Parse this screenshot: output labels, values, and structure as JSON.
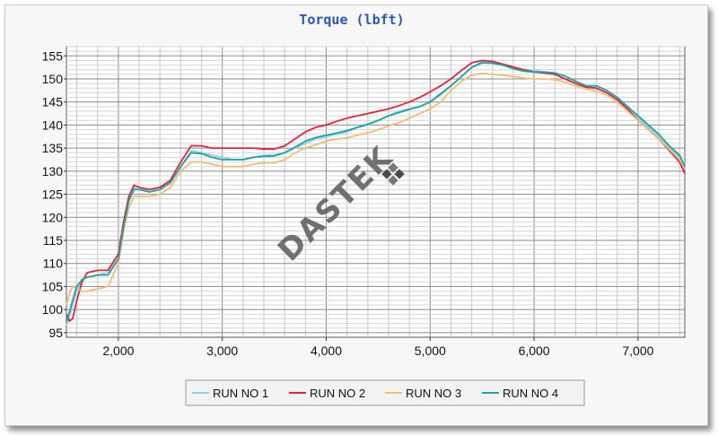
{
  "chart_data": {
    "type": "line",
    "title": "Torque (lbft)",
    "xlabel": "",
    "ylabel": "",
    "xlim": [
      1500,
      7450
    ],
    "ylim": [
      94,
      157
    ],
    "x_ticks": [
      2000,
      3000,
      4000,
      5000,
      6000,
      7000
    ],
    "x_tick_labels": [
      "2,000",
      "3,000",
      "4,000",
      "5,000",
      "6,000",
      "7,000"
    ],
    "y_ticks": [
      95,
      100,
      105,
      110,
      115,
      120,
      125,
      130,
      135,
      140,
      145,
      150,
      155
    ],
    "y_tick_labels": [
      "95",
      "100",
      "105",
      "110",
      "115",
      "120",
      "125",
      "130",
      "135",
      "140",
      "145",
      "150",
      "155"
    ],
    "grid": true,
    "legend_position": "bottom-center",
    "watermark": "DASTEK",
    "series": [
      {
        "name": "RUN NO 1",
        "color": "#8fd0ec",
        "x": [
          1500,
          1530,
          1560,
          1600,
          1650,
          1700,
          1800,
          1900,
          2000,
          2050,
          2100,
          2150,
          2200,
          2300,
          2400,
          2500,
          2600,
          2700,
          2800,
          2900,
          3000,
          3100,
          3200,
          3300,
          3400,
          3500,
          3600,
          3700,
          3800,
          3900,
          4000,
          4100,
          4200,
          4300,
          4400,
          4500,
          4600,
          4700,
          4800,
          4900,
          5000,
          5100,
          5200,
          5300,
          5400,
          5500,
          5600,
          5700,
          5800,
          5900,
          6000,
          6100,
          6200,
          6300,
          6400,
          6500,
          6600,
          6700,
          6800,
          6900,
          7000,
          7100,
          7200,
          7300,
          7400,
          7450
        ],
        "values": [
          96.5,
          98.5,
          101,
          104,
          106.5,
          107,
          107.5,
          108,
          112,
          119,
          124,
          126.5,
          126,
          126,
          126.5,
          127.5,
          131,
          134.5,
          134,
          133.5,
          133,
          132.5,
          132.5,
          133,
          133.5,
          133.5,
          134,
          135,
          136,
          137,
          137.5,
          138,
          138.5,
          139.5,
          140,
          141,
          142,
          143,
          143.5,
          144,
          145,
          146.5,
          148.5,
          150.5,
          152.5,
          153.8,
          153.5,
          153,
          152.5,
          152,
          151.8,
          151.5,
          151,
          150,
          149,
          148.3,
          148,
          147,
          145.5,
          143.5,
          141.5,
          139.5,
          137.5,
          135,
          133,
          131.5
        ]
      },
      {
        "name": "RUN NO 2",
        "color": "#e0243e",
        "x": [
          1500,
          1530,
          1560,
          1600,
          1650,
          1700,
          1800,
          1900,
          2000,
          2050,
          2100,
          2150,
          2200,
          2300,
          2400,
          2500,
          2600,
          2700,
          2800,
          2900,
          3000,
          3100,
          3200,
          3300,
          3400,
          3500,
          3600,
          3700,
          3800,
          3900,
          4000,
          4100,
          4200,
          4300,
          4400,
          4500,
          4600,
          4700,
          4800,
          4900,
          5000,
          5100,
          5200,
          5300,
          5400,
          5500,
          5600,
          5700,
          5800,
          5900,
          6000,
          6100,
          6200,
          6300,
          6400,
          6500,
          6600,
          6700,
          6800,
          6900,
          7000,
          7100,
          7200,
          7300,
          7400,
          7450
        ],
        "values": [
          99,
          97.5,
          98,
          102,
          106,
          108,
          108.5,
          108.5,
          112,
          119,
          124.5,
          127,
          126.5,
          126,
          126.5,
          128,
          132,
          135.5,
          135.5,
          135,
          135,
          135,
          135,
          135,
          134.8,
          134.8,
          135.5,
          137,
          138.5,
          139.5,
          140,
          140.8,
          141.5,
          142,
          142.5,
          143,
          143.5,
          144.2,
          145,
          146,
          147.2,
          148.5,
          150,
          151.8,
          153.5,
          154,
          153.8,
          153.2,
          152.6,
          152,
          151.5,
          151.3,
          151,
          150,
          149,
          148.2,
          148,
          147,
          145.5,
          143.5,
          141,
          139,
          137,
          134.5,
          132,
          129.5
        ]
      },
      {
        "name": "RUN NO 3",
        "color": "#f1bb78",
        "x": [
          1500,
          1530,
          1560,
          1600,
          1650,
          1700,
          1800,
          1900,
          2000,
          2050,
          2100,
          2150,
          2200,
          2300,
          2400,
          2500,
          2600,
          2700,
          2800,
          2900,
          3000,
          3100,
          3200,
          3300,
          3400,
          3500,
          3600,
          3700,
          3800,
          3900,
          4000,
          4100,
          4200,
          4300,
          4400,
          4500,
          4600,
          4700,
          4800,
          4900,
          5000,
          5100,
          5200,
          5300,
          5400,
          5500,
          5600,
          5700,
          5800,
          5900,
          6000,
          6100,
          6200,
          6300,
          6400,
          6500,
          6600,
          6700,
          6800,
          6900,
          7000,
          7100,
          7200,
          7300,
          7400,
          7450
        ],
        "values": [
          101,
          103.5,
          105,
          104.5,
          104,
          104,
          104.5,
          105,
          110,
          117,
          122,
          124.5,
          124.5,
          124.5,
          125,
          126.5,
          130,
          132,
          132,
          131.5,
          131,
          131,
          131,
          131.5,
          131.8,
          131.8,
          132.5,
          134,
          135,
          135.7,
          136.5,
          137,
          137.2,
          137.8,
          138.3,
          139,
          139.8,
          140.5,
          141.5,
          142.5,
          143.5,
          145,
          147.5,
          149.5,
          150.8,
          151.2,
          151,
          150.8,
          150.5,
          150.2,
          150,
          150,
          149.8,
          149.3,
          148.5,
          147.8,
          147.3,
          146.5,
          145,
          143,
          141,
          139,
          137,
          134.8,
          132.5,
          130.5
        ]
      },
      {
        "name": "RUN NO 4",
        "color": "#1fa39c",
        "x": [
          1500,
          1530,
          1560,
          1600,
          1650,
          1700,
          1800,
          1900,
          2000,
          2050,
          2100,
          2150,
          2200,
          2300,
          2400,
          2500,
          2600,
          2700,
          2800,
          2900,
          3000,
          3100,
          3200,
          3300,
          3400,
          3500,
          3600,
          3700,
          3800,
          3900,
          4000,
          4100,
          4200,
          4300,
          4400,
          4500,
          4600,
          4700,
          4800,
          4900,
          5000,
          5100,
          5200,
          5300,
          5400,
          5500,
          5600,
          5700,
          5800,
          5900,
          6000,
          6100,
          6200,
          6300,
          6400,
          6500,
          6600,
          6700,
          6800,
          6900,
          7000,
          7100,
          7200,
          7300,
          7400,
          7450
        ],
        "values": [
          97.5,
          99.5,
          102,
          105,
          106.5,
          107,
          107.5,
          107.5,
          111,
          118,
          123.5,
          126,
          126,
          125.5,
          126,
          127.5,
          131,
          134,
          133.8,
          133,
          132.5,
          132.5,
          132.5,
          133,
          133.2,
          133.3,
          134,
          135.2,
          136.5,
          137.3,
          137.8,
          138.3,
          138.8,
          139.5,
          140.2,
          141,
          142,
          142.7,
          143.4,
          144,
          145,
          146.8,
          148.5,
          150.5,
          152.5,
          153.5,
          153.4,
          153,
          152.2,
          151.7,
          151.5,
          151.5,
          151.3,
          150.6,
          149.5,
          148.5,
          148.5,
          147.5,
          146,
          144,
          142,
          140,
          138,
          135.5,
          133.5,
          131
        ]
      }
    ]
  }
}
